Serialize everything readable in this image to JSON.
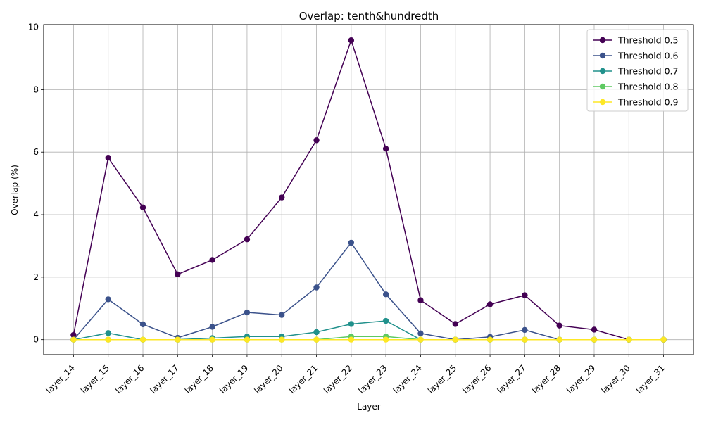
{
  "chart_data": {
    "type": "line",
    "title": "Overlap: tenth&hundredth",
    "xlabel": "Layer",
    "ylabel": "Overlap (%)",
    "categories": [
      "layer_14",
      "layer_15",
      "layer_16",
      "layer_17",
      "layer_18",
      "layer_19",
      "layer_20",
      "layer_21",
      "layer_22",
      "layer_23",
      "layer_24",
      "layer_25",
      "layer_26",
      "layer_27",
      "layer_28",
      "layer_29",
      "layer_30",
      "layer_31"
    ],
    "ylim": [
      -0.48,
      10.08
    ],
    "yticks": [
      0,
      2,
      4,
      6,
      8,
      10
    ],
    "grid": true,
    "legend_position": "top-right",
    "series": [
      {
        "name": "Threshold 0.5",
        "color": "#440154",
        "values": [
          0.15,
          5.82,
          4.23,
          2.09,
          2.55,
          3.21,
          4.55,
          6.38,
          9.58,
          6.11,
          1.26,
          0.5,
          1.13,
          1.42,
          0.45,
          0.32,
          0.0,
          0.0
        ]
      },
      {
        "name": "Threshold 0.6",
        "color": "#3b528b",
        "values": [
          0.0,
          1.29,
          0.49,
          0.06,
          0.41,
          0.87,
          0.79,
          1.67,
          3.1,
          1.45,
          0.2,
          0.0,
          0.09,
          0.31,
          0.0,
          0.0,
          0.0,
          0.0
        ]
      },
      {
        "name": "Threshold 0.7",
        "color": "#21918c",
        "values": [
          0.0,
          0.21,
          0.0,
          0.0,
          0.05,
          0.1,
          0.1,
          0.24,
          0.5,
          0.6,
          0.0,
          0.0,
          0.0,
          0.0,
          0.0,
          0.0,
          0.0,
          0.0
        ]
      },
      {
        "name": "Threshold 0.8",
        "color": "#5ec962",
        "values": [
          0.0,
          0.0,
          0.0,
          0.0,
          0.0,
          0.0,
          0.0,
          0.0,
          0.1,
          0.1,
          0.0,
          0.0,
          0.0,
          0.0,
          0.0,
          0.0,
          0.0,
          0.0
        ]
      },
      {
        "name": "Threshold 0.9",
        "color": "#fde725",
        "values": [
          0.0,
          0.0,
          0.0,
          0.0,
          0.0,
          0.0,
          0.0,
          0.0,
          0.0,
          0.0,
          0.0,
          0.0,
          0.0,
          0.0,
          0.0,
          0.0,
          0.0,
          0.0
        ]
      }
    ]
  }
}
